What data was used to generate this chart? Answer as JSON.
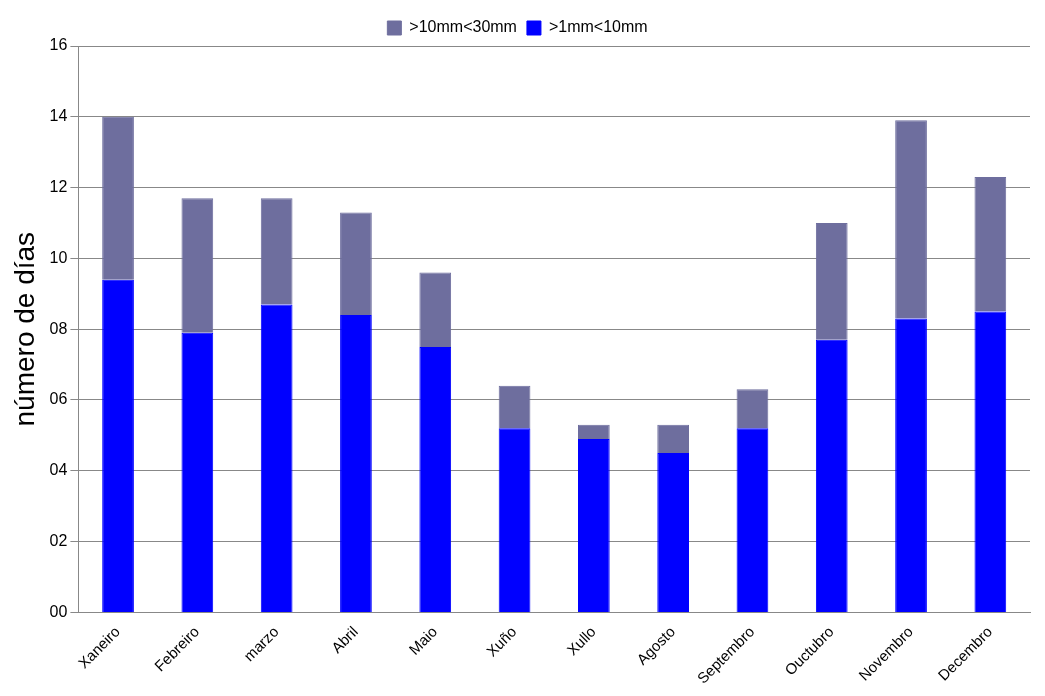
{
  "chart_data": {
    "type": "bar",
    "ylabel": "número de días",
    "stacked": true,
    "grid": "y",
    "legend": "top",
    "categories": [
      "Xaneiro",
      "Febreiro",
      "marzo",
      "Abril",
      "Maio",
      "Xuño",
      "Xullo",
      "Agosto",
      "Septembro",
      "Ouctubro",
      "Novembro",
      "Decembro"
    ],
    "series": [
      {
        "name": ">1mm<10mm",
        "color": "#0000ff",
        "values": [
          9.4,
          7.9,
          8.7,
          8.4,
          7.5,
          5.2,
          4.9,
          4.5,
          5.2,
          7.7,
          8.3,
          8.5
        ]
      },
      {
        "name": ">10mm<30mm",
        "color": "#6e6e9e",
        "values": [
          4.6,
          3.8,
          3.0,
          2.9,
          2.1,
          1.2,
          0.4,
          0.8,
          1.1,
          3.3,
          5.6,
          3.8
        ]
      }
    ],
    "ylim": [
      0,
      16
    ],
    "yticks": [
      {
        "value": 0,
        "label": "00"
      },
      {
        "value": 2,
        "label": "02"
      },
      {
        "value": 4,
        "label": "04"
      },
      {
        "value": 6,
        "label": "06"
      },
      {
        "value": 8,
        "label": "08"
      },
      {
        "value": 10,
        "label": "10"
      },
      {
        "value": 12,
        "label": "12"
      },
      {
        "value": 14,
        "label": "14"
      },
      {
        "value": 16,
        "label": "16"
      }
    ]
  }
}
